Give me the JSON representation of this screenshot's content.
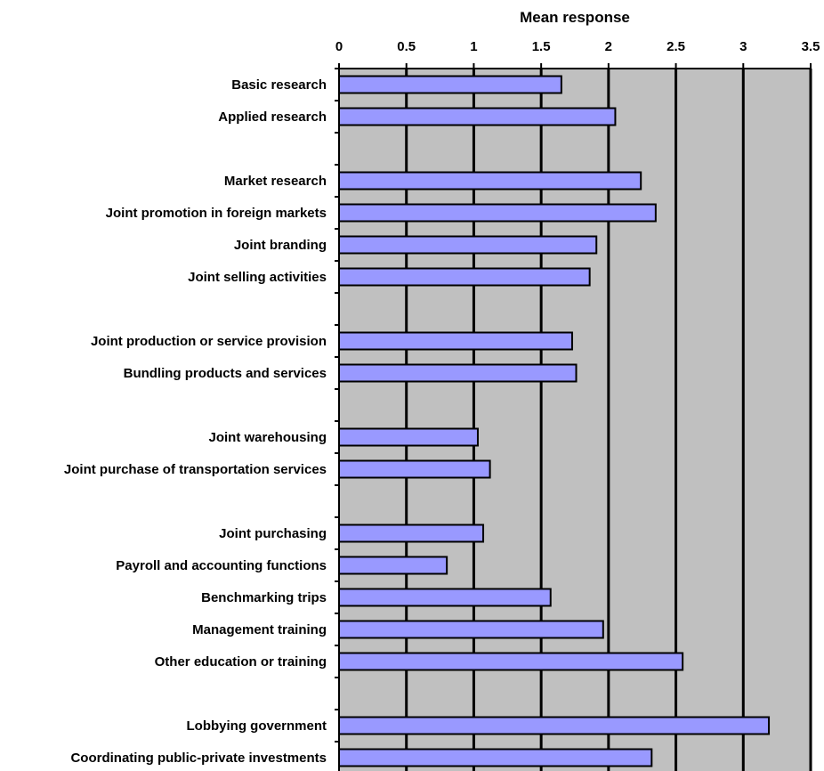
{
  "chart_data": {
    "type": "bar",
    "orientation": "horizontal",
    "xlabel": "Mean response",
    "xlabel_position": "top",
    "xlim": [
      0,
      3.5
    ],
    "xticks": [
      0,
      0.5,
      1,
      1.5,
      2,
      2.5,
      3,
      3.5
    ],
    "xtick_labels": [
      "0",
      "0.5",
      "1",
      "1.5",
      "2",
      "2.5",
      "3",
      "3.5"
    ],
    "grid": true,
    "legend": "none",
    "categories": [
      "Basic research",
      "Applied research",
      "",
      "Market research",
      "Joint promotion in foreign markets",
      "Joint branding",
      "Joint selling activities",
      "",
      "Joint production or service provision",
      "Bundling products and services",
      "",
      "Joint warehousing",
      "Joint purchase of transportation services",
      "",
      "Joint purchasing",
      "Payroll and accounting functions",
      "Benchmarking trips",
      "Management training",
      "Other education or training",
      "",
      "Lobbying government",
      "Coordinating public-private investments"
    ],
    "values": [
      1.65,
      2.05,
      null,
      2.24,
      2.35,
      1.91,
      1.86,
      null,
      1.73,
      1.76,
      null,
      1.03,
      1.12,
      null,
      1.07,
      0.8,
      1.57,
      1.96,
      2.55,
      null,
      3.19,
      2.32
    ],
    "colors": {
      "plot_background": "#c0c0c0",
      "bar_fill": "#9999ff",
      "bar_stroke": "#000000",
      "gridline": "#000000"
    }
  }
}
